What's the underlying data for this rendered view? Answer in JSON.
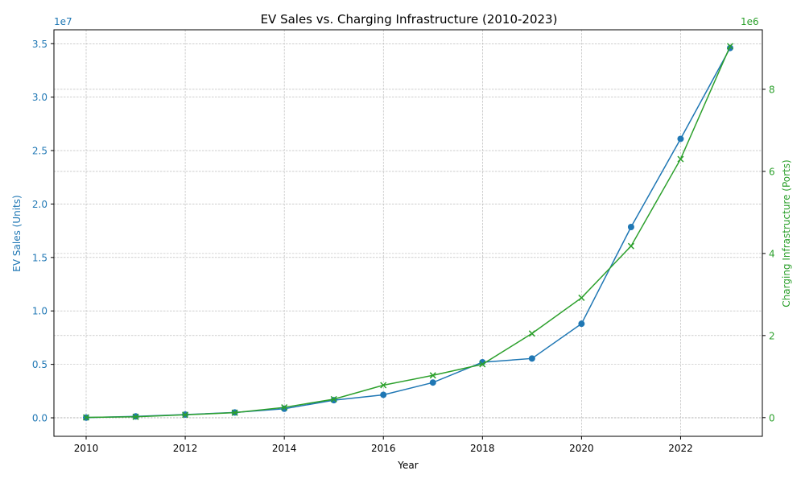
{
  "chart_data": {
    "type": "line",
    "title": "EV Sales vs. Charging Infrastructure (2010-2023)",
    "xlabel": "Year",
    "ylabel_left": "EV Sales (Units)",
    "ylabel_right": "Charging Infrastructure (Ports)",
    "x": [
      2010,
      2011,
      2012,
      2013,
      2014,
      2015,
      2016,
      2017,
      2018,
      2019,
      2020,
      2021,
      2022,
      2023
    ],
    "xlim": [
      2009.35,
      2023.65
    ],
    "x_ticks": [
      2010,
      2012,
      2014,
      2016,
      2018,
      2020,
      2022
    ],
    "x_tick_labels": [
      "2010",
      "2012",
      "2014",
      "2016",
      "2018",
      "2020",
      "2022"
    ],
    "left_axis": {
      "ylim": [
        -1730000,
        36300000
      ],
      "ticks": [
        0,
        5000000,
        10000000,
        15000000,
        20000000,
        25000000,
        30000000,
        35000000
      ],
      "tick_labels": [
        "0.0",
        "0.5",
        "1.0",
        "1.5",
        "2.0",
        "2.5",
        "3.0",
        "3.5"
      ],
      "offset_label": "1e7",
      "color": "#1f77b4"
    },
    "right_axis": {
      "ylim": [
        -455000,
        9450000
      ],
      "ticks": [
        0,
        2000000,
        4000000,
        6000000,
        8000000
      ],
      "tick_labels": [
        "0",
        "2",
        "4",
        "6",
        "8"
      ],
      "offset_label": "1e6",
      "color": "#2ca02c"
    },
    "series": [
      {
        "axis": "left",
        "marker": "circle",
        "color": "#1f77b4",
        "values": [
          20000,
          130000,
          300000,
          500000,
          850000,
          1650000,
          2150000,
          3300000,
          5200000,
          5550000,
          8800000,
          17850000,
          26100000,
          34600000
        ]
      },
      {
        "axis": "right",
        "marker": "x",
        "color": "#2ca02c",
        "values": [
          5000,
          20000,
          70000,
          120000,
          250000,
          450000,
          790000,
          1030000,
          1300000,
          2050000,
          2920000,
          4180000,
          6300000,
          9050000
        ]
      }
    ],
    "grid": true,
    "legend": "none"
  }
}
